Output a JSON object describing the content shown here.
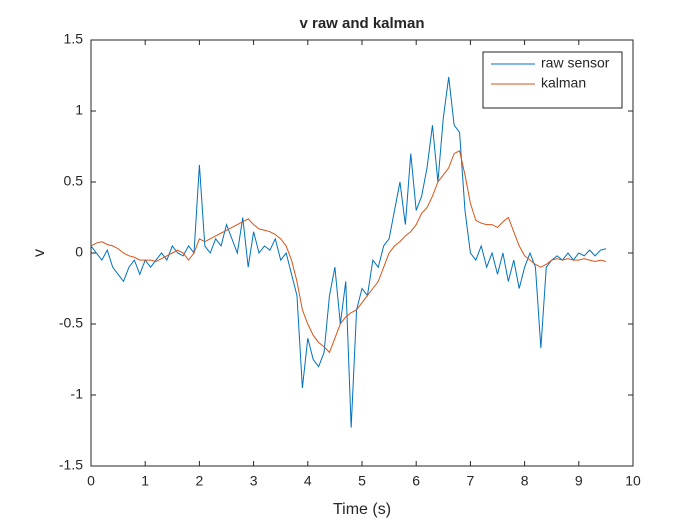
{
  "chart_data": {
    "type": "line",
    "title": "v raw and kalman",
    "xlabel": "Time (s)",
    "ylabel": "v",
    "x": [
      0,
      0.1,
      0.2,
      0.3,
      0.4,
      0.5,
      0.6,
      0.7,
      0.8,
      0.9,
      1,
      1.1,
      1.2,
      1.3,
      1.4,
      1.5,
      1.6,
      1.7,
      1.8,
      1.9,
      2,
      2.1,
      2.2,
      2.3,
      2.4,
      2.5,
      2.6,
      2.7,
      2.8,
      2.9,
      3,
      3.1,
      3.2,
      3.3,
      3.4,
      3.5,
      3.6,
      3.7,
      3.8,
      3.9,
      4,
      4.1,
      4.2,
      4.3,
      4.4,
      4.5,
      4.6,
      4.7,
      4.8,
      4.9,
      5,
      5.1,
      5.2,
      5.3,
      5.4,
      5.5,
      5.6,
      5.7,
      5.8,
      5.9,
      6,
      6.1,
      6.2,
      6.3,
      6.4,
      6.5,
      6.6,
      6.7,
      6.8,
      6.9,
      7,
      7.1,
      7.2,
      7.3,
      7.4,
      7.5,
      7.6,
      7.7,
      7.8,
      7.9,
      8,
      8.1,
      8.2,
      8.3,
      8.4,
      8.5,
      8.6,
      8.7,
      8.8,
      8.9,
      9,
      9.1,
      9.2,
      9.3,
      9.4,
      9.5
    ],
    "series": [
      {
        "name": "raw sensor",
        "color": "#0072BD",
        "values": [
          0.05,
          0,
          -0.05,
          0.02,
          -0.1,
          -0.15,
          -0.2,
          -0.1,
          -0.05,
          -0.15,
          -0.05,
          -0.1,
          -0.05,
          0,
          -0.05,
          0.05,
          0,
          -0.02,
          0.05,
          0,
          0.62,
          0.05,
          0,
          0.1,
          0.05,
          0.2,
          0.1,
          0,
          0.25,
          -0.1,
          0.15,
          0,
          0.05,
          0.02,
          0.1,
          -0.05,
          0,
          -0.15,
          -0.3,
          -0.95,
          -0.6,
          -0.75,
          -0.8,
          -0.7,
          -0.3,
          -0.1,
          -0.5,
          -0.2,
          -1.23,
          -0.4,
          -0.25,
          -0.3,
          -0.05,
          -0.1,
          0.05,
          0.1,
          0.3,
          0.5,
          0.2,
          0.7,
          0.3,
          0.4,
          0.6,
          0.9,
          0.5,
          0.95,
          1.24,
          0.9,
          0.85,
          0.3,
          0,
          -0.05,
          0.05,
          -0.1,
          0,
          -0.15,
          0,
          -0.2,
          -0.05,
          -0.25,
          -0.1,
          0,
          -0.1,
          -0.67,
          -0.1,
          -0.05,
          -0.02,
          -0.05,
          0,
          -0.05,
          0,
          -0.02,
          0.02,
          -0.02,
          0.02,
          0.03
        ]
      },
      {
        "name": "kalman",
        "color": "#D95319",
        "values": [
          0.05,
          0.07,
          0.08,
          0.06,
          0.05,
          0.03,
          0,
          -0.02,
          -0.03,
          -0.05,
          -0.05,
          -0.05,
          -0.06,
          -0.04,
          -0.02,
          0,
          0.02,
          0,
          -0.05,
          0,
          0.1,
          0.08,
          0.1,
          0.12,
          0.14,
          0.16,
          0.18,
          0.2,
          0.22,
          0.24,
          0.2,
          0.17,
          0.16,
          0.15,
          0.13,
          0.1,
          0.05,
          -0.05,
          -0.2,
          -0.4,
          -0.5,
          -0.58,
          -0.63,
          -0.66,
          -0.7,
          -0.6,
          -0.5,
          -0.45,
          -0.42,
          -0.4,
          -0.35,
          -0.3,
          -0.25,
          -0.2,
          -0.1,
          0,
          0.05,
          0.08,
          0.12,
          0.15,
          0.2,
          0.28,
          0.32,
          0.4,
          0.5,
          0.55,
          0.6,
          0.7,
          0.72,
          0.55,
          0.35,
          0.23,
          0.21,
          0.2,
          0.2,
          0.18,
          0.22,
          0.25,
          0.15,
          0.05,
          -0.02,
          -0.05,
          -0.08,
          -0.1,
          -0.08,
          -0.05,
          -0.04,
          -0.05,
          -0.04,
          -0.05,
          -0.05,
          -0.04,
          -0.05,
          -0.06,
          -0.05,
          -0.06
        ]
      }
    ],
    "xlim": [
      0,
      10
    ],
    "xticks": [
      0,
      1,
      2,
      3,
      4,
      5,
      6,
      7,
      8,
      9,
      10
    ],
    "ylim": [
      -1.5,
      1.5
    ],
    "yticks": [
      -1.5,
      -1,
      -0.5,
      0,
      0.5,
      1,
      1.5
    ],
    "grid": false,
    "legend": "northeast"
  }
}
